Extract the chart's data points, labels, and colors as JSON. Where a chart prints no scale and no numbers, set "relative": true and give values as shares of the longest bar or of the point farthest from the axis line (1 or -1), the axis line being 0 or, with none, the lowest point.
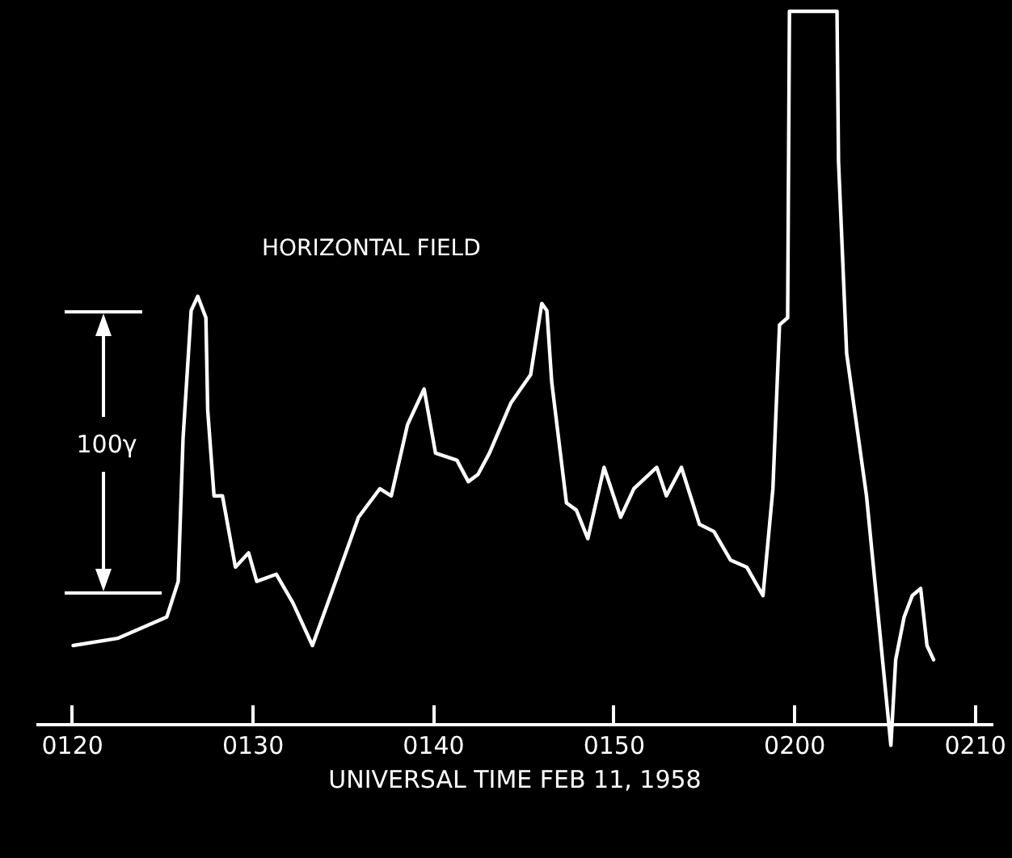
{
  "chart_data": {
    "type": "line",
    "title": "HORIZONTAL FIELD",
    "xlabel": "UNIVERSAL TIME FEB 11, 1958",
    "relative": true,
    "annotations": [
      "100γ"
    ],
    "xlim": [
      "1958-02-11T01:18",
      "1958-02-11T02:11"
    ],
    "xticks": [
      {
        "value": "1958-02-11T01:20",
        "label": "0120"
      },
      {
        "value": "1958-02-11T01:30",
        "label": "0130"
      },
      {
        "value": "1958-02-11T01:40",
        "label": "0140"
      },
      {
        "value": "1958-02-11T01:50",
        "label": "0150"
      },
      {
        "value": "1958-02-11T02:00",
        "label": "0200"
      },
      {
        "value": "1958-02-11T02:10",
        "label": "0210"
      }
    ],
    "grid": false,
    "marker": "none",
    "line_style": "solid",
    "series": [
      {
        "color": "#ffffff",
        "x": [
          "1958-02-11T01:20:05",
          "1958-02-11T01:22:32",
          "1958-02-11T01:25:16",
          "1958-02-11T01:25:54",
          "1958-02-11T01:26:10",
          "1958-02-11T01:26:37",
          "1958-02-11T01:26:59",
          "1958-02-11T01:27:26",
          "1958-02-11T01:27:32",
          "1958-02-11T01:27:53",
          "1958-02-11T01:28:21",
          "1958-02-11T01:29:04",
          "1958-02-11T01:29:48",
          "1958-02-11T01:30:15",
          "1958-02-11T01:31:20",
          "1958-02-11T01:32:15",
          "1958-02-11T01:33:20",
          "1958-02-11T01:34:20",
          "1958-02-11T01:35:53",
          "1958-02-11T01:37:04",
          "1958-02-11T01:37:42",
          "1958-02-11T01:38:36",
          "1958-02-11T01:39:31",
          "1958-02-11T01:40:09",
          "1958-02-11T01:41:20",
          "1958-02-11T01:41:58",
          "1958-02-11T01:42:30",
          "1958-02-11T01:43:08",
          "1958-02-11T01:44:19",
          "1958-02-11T01:45:25",
          "1958-02-11T01:46:02",
          "1958-02-11T01:46:19",
          "1958-02-11T01:46:35",
          "1958-02-11T01:47:24",
          "1958-02-11T01:47:57",
          "1958-02-11T01:48:35",
          "1958-02-11T01:49:29",
          "1958-02-11T01:50:24",
          "1958-02-11T01:51:08",
          "1958-02-11T01:52:24",
          "1958-02-11T01:52:56",
          "1958-02-11T01:53:46",
          "1958-02-11T01:54:46",
          "1958-02-11T01:55:34",
          "1958-02-11T01:56:29",
          "1958-02-11T01:57:23",
          "1958-02-11T01:58:17",
          "1958-02-11T01:58:50",
          "1958-02-11T01:59:12",
          "1958-02-11T01:59:39",
          "1958-02-11T01:59:45",
          "1958-02-11T02:02:23",
          "1958-02-11T02:02:28",
          "1958-02-11T02:02:55",
          "1958-02-11T02:04:01",
          "1958-02-11T02:05:22",
          "1958-02-11T02:05:38",
          "1958-02-11T02:06:06",
          "1958-02-11T02:06:33",
          "1958-02-11T02:07:01",
          "1958-02-11T02:07:22",
          "1958-02-11T02:07:44"
        ],
        "values": [
          0.11,
          0.12,
          0.15,
          0.2,
          0.4,
          0.58,
          0.6,
          0.57,
          0.44,
          0.32,
          0.32,
          0.22,
          0.24,
          0.2,
          0.21,
          0.17,
          0.11,
          0.18,
          0.29,
          0.33,
          0.32,
          0.42,
          0.47,
          0.38,
          0.37,
          0.34,
          0.35,
          0.38,
          0.45,
          0.49,
          0.59,
          0.58,
          0.48,
          0.31,
          0.3,
          0.26,
          0.36,
          0.29,
          0.33,
          0.36,
          0.32,
          0.36,
          0.28,
          0.27,
          0.23,
          0.22,
          0.18,
          0.33,
          0.56,
          0.57,
          1,
          1,
          0.79,
          0.52,
          0.32,
          -0.03,
          0.09,
          0.15,
          0.18,
          0.19,
          0.11,
          0.09
        ]
      }
    ]
  }
}
